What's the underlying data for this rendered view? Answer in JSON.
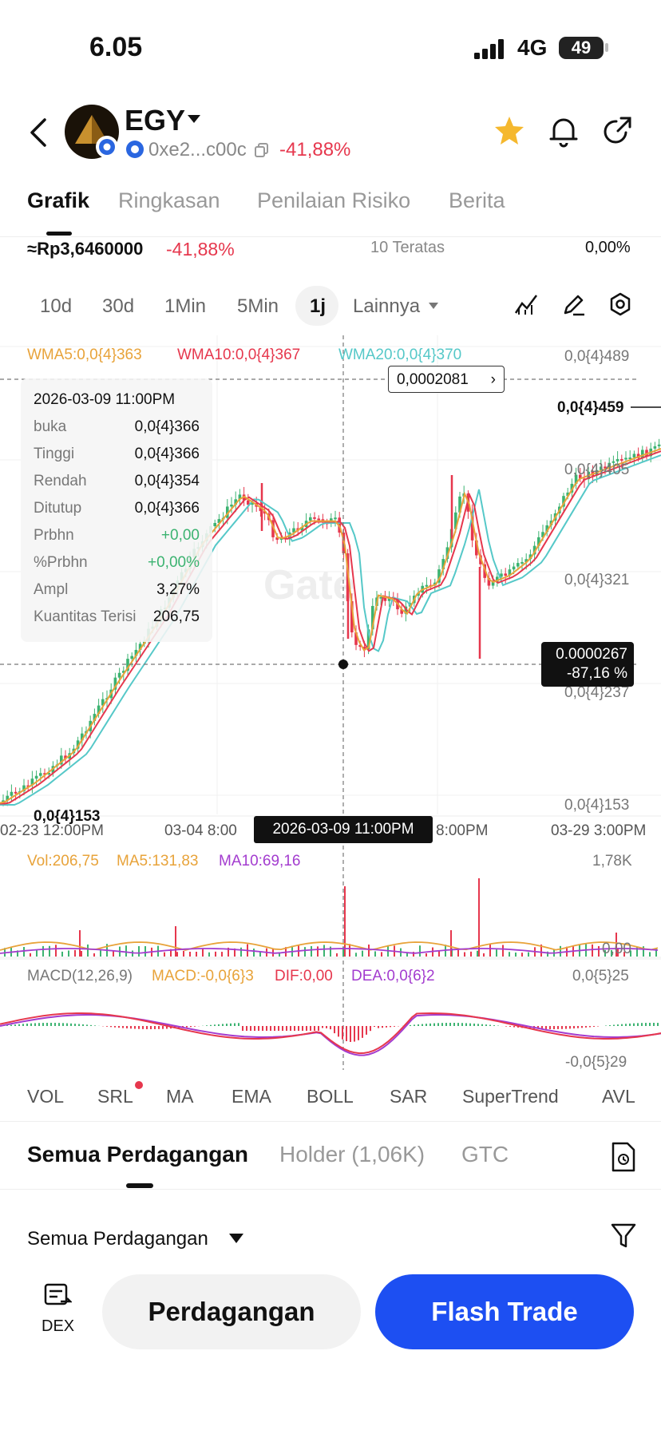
{
  "status": {
    "time": "6.05",
    "network": "4G",
    "battery": "49"
  },
  "header": {
    "coin_name": "EGY",
    "address": "0xe2...c00c",
    "change": "-41,88%"
  },
  "tabs": [
    {
      "label": "Grafik"
    },
    {
      "label": "Ringkasan"
    },
    {
      "label": "Penilaian Risiko"
    },
    {
      "label": "Berita"
    }
  ],
  "price_row": {
    "price": "≈Rp3,6460000",
    "change": "-41,88%",
    "top_label": "10 Teratas",
    "top_value": "0,00%"
  },
  "timeframes": [
    {
      "label": "10d"
    },
    {
      "label": "30d"
    },
    {
      "label": "1Min"
    },
    {
      "label": "5Min"
    },
    {
      "label": "1j"
    }
  ],
  "more_label": "Lainnya",
  "chart": {
    "wma5": "WMA5:0,0{4}363",
    "wma10": "WMA10:0,0{4}367",
    "wma20": "WMA20:0,0{4}370",
    "price_axis": [
      "0,0{4}489",
      "0,0{4}405",
      "0,0{4}321",
      "0,0{4}237",
      "0,0{4}153"
    ],
    "high_marker": "0,0{4}459",
    "low_marker": "0,0{4}153",
    "crosshair_price": "0,0002081",
    "crosshair_value": "0.0000267",
    "crosshair_pct": "-87,16 %",
    "time_axis": [
      "02-23 12:00PM",
      "03-04 8:00",
      "8:00PM",
      "03-29 3:00PM"
    ],
    "crosshair_time": "2026-03-09 11:00PM",
    "watermark": "Gate"
  },
  "tooltip": {
    "date": "2026-03-09 11:00PM",
    "rows": [
      {
        "label": "buka",
        "value": "0,0{4}366"
      },
      {
        "label": "Tinggi",
        "value": "0,0{4}366"
      },
      {
        "label": "Rendah",
        "value": "0,0{4}354"
      },
      {
        "label": "Ditutup",
        "value": "0,0{4}366"
      },
      {
        "label": "Prbhn",
        "value": "+0,00"
      },
      {
        "label": "%Prbhn",
        "value": "+0,00%"
      },
      {
        "label": "Ampl",
        "value": "3,27%"
      },
      {
        "label": "Kuantitas Terisi",
        "value": "206,75"
      }
    ]
  },
  "volume": {
    "vol": "Vol:206,75",
    "ma5": "MA5:131,83",
    "ma10": "MA10:69,16",
    "max": "1,78K",
    "min": "0,00"
  },
  "macd": {
    "label": "MACD(12,26,9)",
    "macd": "MACD:-0,0{6}3",
    "dif": "DIF:0,00",
    "dea": "DEA:0,0{6}2",
    "max": "0,0{5}25",
    "min": "-0,0{5}29"
  },
  "indicators": [
    {
      "label": "VOL"
    },
    {
      "label": "SRL"
    },
    {
      "label": "MA"
    },
    {
      "label": "EMA"
    },
    {
      "label": "BOLL"
    },
    {
      "label": "SAR"
    },
    {
      "label": "SuperTrend"
    },
    {
      "label": "AVL"
    }
  ],
  "bottom_tabs": [
    {
      "label": "Semua Perdagangan"
    },
    {
      "label": "Holder (1,06K)"
    },
    {
      "label": "GTC"
    }
  ],
  "filter_label": "Semua Perdagangan",
  "actions": {
    "dex": "DEX",
    "trade": "Perdagangan",
    "flash": "Flash Trade"
  },
  "colors": {
    "up": "#3cb371",
    "down": "#e6374d",
    "wma5": "#e8a33a",
    "wma10": "#e6374d",
    "wma20": "#55c8c8",
    "accent": "#1d4ff2",
    "star": "#f5b82e"
  }
}
